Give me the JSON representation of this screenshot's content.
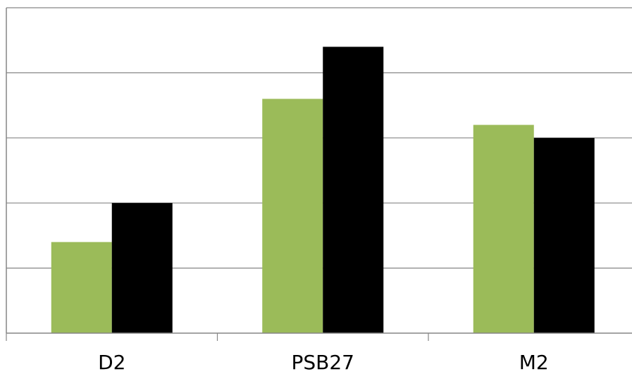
{
  "chart_data": {
    "type": "bar",
    "title": "",
    "xlabel": "",
    "ylabel": "",
    "categories": [
      "D2",
      "PSB27",
      "M2"
    ],
    "series": [
      {
        "values": [
          0.7,
          1.8,
          1.6
        ],
        "color": "#9BBB59"
      },
      {
        "values": [
          1.0,
          2.2,
          1.5
        ],
        "color": "#000000"
      }
    ],
    "ylim": [
      0,
      2.5
    ],
    "y_gridlines": [
      0.5,
      1.0,
      1.5,
      2.0,
      2.5
    ],
    "grid": true,
    "y_tick_labels_visible": false,
    "legend": "none"
  }
}
